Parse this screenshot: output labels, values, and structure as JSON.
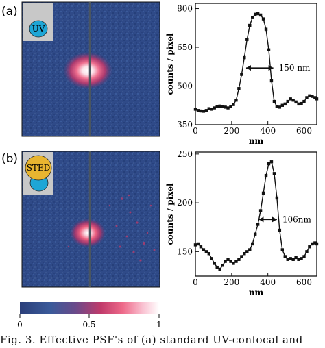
{
  "panels": [
    {
      "letter": "(a)",
      "inset_label": "UV",
      "inset_fill": "#1ea6d6"
    },
    {
      "letter": "(b)",
      "inset_label": "STED",
      "inset_fill": "#e8b530",
      "inset_fill2": "#1ea6d6"
    }
  ],
  "colorbar": {
    "tick_labels": [
      "0",
      "0.5",
      "1"
    ],
    "colors": [
      "#2b3f7a",
      "#3a5a9a",
      "#6a4a8a",
      "#c03a6a",
      "#ee6a8a",
      "#f9c0d0",
      "#ffffff"
    ]
  },
  "caption": "Fig. 3. Effective PSF's of (a) standard UV-confocal and",
  "chart_data": [
    {
      "type": "line",
      "panel": "a",
      "xlabel": "nm",
      "ylabel": "counts / pixel",
      "xlim": [
        0,
        670
      ],
      "ylim": [
        350,
        820
      ],
      "xticks": [
        0,
        200,
        400,
        600
      ],
      "yticks": [
        350,
        500,
        650,
        800
      ],
      "annotation": "150 nm",
      "fwhm": [
        280,
        430
      ],
      "fwhm_y": 570,
      "x": [
        0,
        15,
        30,
        45,
        60,
        75,
        90,
        105,
        120,
        135,
        150,
        165,
        180,
        195,
        210,
        225,
        240,
        255,
        270,
        285,
        300,
        315,
        330,
        345,
        360,
        375,
        390,
        405,
        420,
        435,
        450,
        465,
        480,
        495,
        510,
        525,
        540,
        555,
        570,
        585,
        600,
        615,
        630,
        645,
        660,
        670
      ],
      "y": [
        410,
        405,
        403,
        402,
        405,
        412,
        410,
        415,
        420,
        422,
        420,
        418,
        415,
        420,
        428,
        445,
        490,
        545,
        610,
        680,
        735,
        765,
        778,
        780,
        775,
        760,
        720,
        640,
        520,
        440,
        420,
        418,
        425,
        430,
        440,
        450,
        445,
        438,
        430,
        432,
        440,
        455,
        462,
        460,
        455,
        450
      ]
    },
    {
      "type": "line",
      "panel": "b",
      "xlabel": "nm",
      "ylabel": "counts / pixel",
      "xlim": [
        0,
        670
      ],
      "ylim": [
        125,
        252
      ],
      "xticks": [
        0,
        200,
        400,
        600
      ],
      "yticks": [
        150,
        200,
        250
      ],
      "annotation": "106nm",
      "fwhm": [
        350,
        450
      ],
      "fwhm_y": 183,
      "x": [
        0,
        15,
        30,
        45,
        60,
        75,
        90,
        105,
        120,
        135,
        150,
        165,
        180,
        195,
        210,
        225,
        240,
        255,
        270,
        285,
        300,
        315,
        330,
        345,
        360,
        375,
        390,
        405,
        420,
        435,
        450,
        465,
        480,
        495,
        510,
        525,
        540,
        555,
        570,
        585,
        600,
        615,
        630,
        645,
        660,
        670
      ],
      "y": [
        157,
        158,
        155,
        152,
        150,
        148,
        143,
        138,
        134,
        132,
        136,
        140,
        142,
        140,
        138,
        140,
        142,
        145,
        148,
        150,
        152,
        158,
        168,
        178,
        192,
        210,
        228,
        240,
        242,
        230,
        205,
        172,
        152,
        145,
        142,
        143,
        142,
        144,
        142,
        143,
        145,
        150,
        155,
        158,
        159,
        158
      ]
    }
  ]
}
